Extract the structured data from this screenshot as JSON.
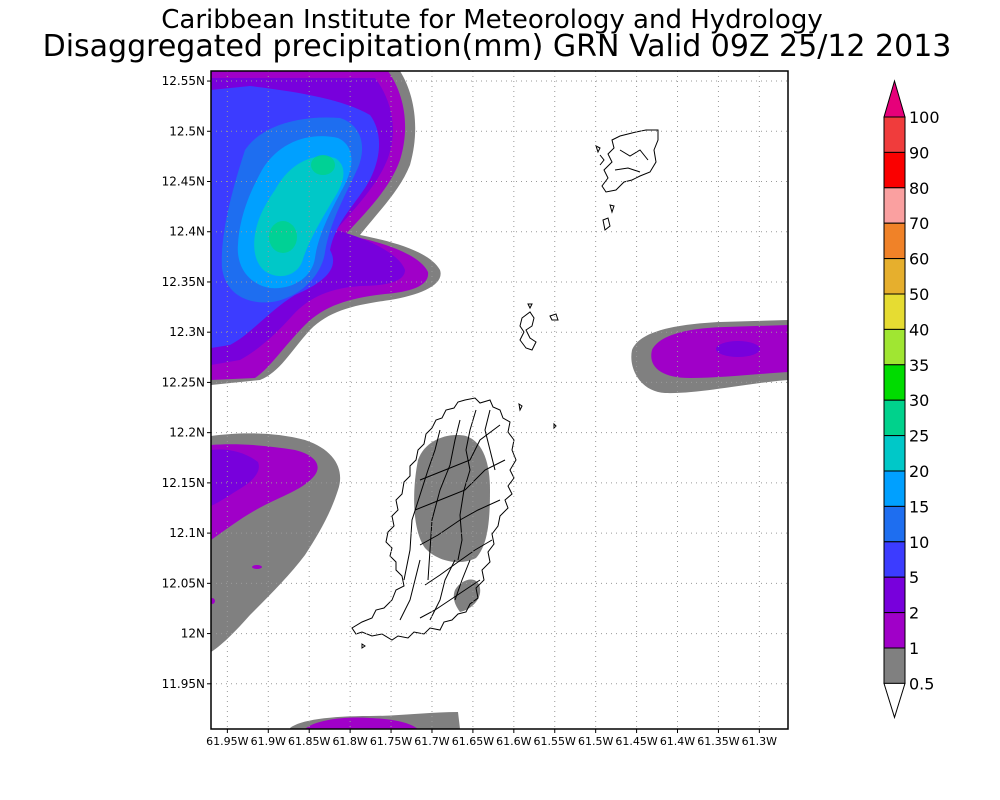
{
  "title": {
    "line1": "Caribbean Institute for Meteorology and Hydrology",
    "line2": "Disaggregated precipitation(mm) GRN Valid 09Z 25/12 2013"
  },
  "axes": {
    "y_labels": [
      "12.55N",
      "12.5N",
      "12.45N",
      "12.4N",
      "12.35N",
      "12.3N",
      "12.25N",
      "12.2N",
      "12.15N",
      "12.1N",
      "12.05N",
      "12N",
      "11.95N"
    ],
    "x_labels": [
      "61.95W",
      "61.9W",
      "61.85W",
      "61.8W",
      "61.75W",
      "61.7W",
      "61.65W",
      "61.6W",
      "61.55W",
      "61.5W",
      "61.45W",
      "61.4W",
      "61.35W",
      "61.3W"
    ],
    "lat_range": [
      11.905,
      12.56
    ],
    "lon_range": [
      -61.97,
      -61.265
    ],
    "grid": "dotted"
  },
  "colorbar": {
    "levels": [
      "0.5",
      "1",
      "2",
      "5",
      "10",
      "15",
      "20",
      "25",
      "30",
      "35",
      "40",
      "50",
      "60",
      "70",
      "80",
      "90",
      "100"
    ],
    "colors": [
      "#808080",
      "#a000c8",
      "#7800dc",
      "#3c3cff",
      "#1e6ef0",
      "#00a0ff",
      "#00c8c8",
      "#00d28c",
      "#00dc00",
      "#a0e632",
      "#e6dc32",
      "#e6af2d",
      "#f08228",
      "#faa0a0",
      "#fa0000",
      "#f03c3c",
      "#e6007a"
    ]
  },
  "map": {
    "region": "Grenada"
  }
}
